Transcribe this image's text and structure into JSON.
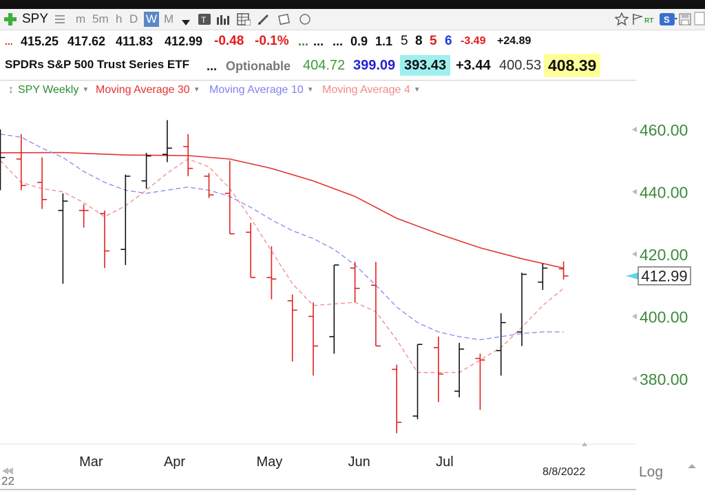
{
  "toolbar": {
    "symbol": "SPY",
    "periods": [
      "m",
      "5m",
      "h",
      "D",
      "W",
      "M"
    ],
    "active_period": "W",
    "icons": [
      "plus-icon",
      "list-icon",
      "dropdown-icon",
      "text-tool-icon",
      "bars-icon",
      "grid-icon",
      "pencil-icon",
      "annotation-icon",
      "circle-icon"
    ],
    "right_icons": [
      "star-icon",
      "flag-icon",
      "rt-icon",
      "s-icon",
      "save-icon",
      "copy-icon"
    ],
    "rt_label": "RT",
    "s_label": "S"
  },
  "quote_row": {
    "dots": "...",
    "open": "415.25",
    "high": "417.62",
    "low": "411.83",
    "close": "412.99",
    "change": "-0.48",
    "change_pct": "-0.1%",
    "dots2": "...",
    "dots3": "...",
    "dots4": "...",
    "val1": "0.9",
    "val2": "1.1",
    "n1": "5",
    "n2": "8",
    "n3": "5",
    "n4": "6",
    "neg": "-3.49",
    "pos": "+24.89",
    "colors": {
      "neg": "#e31b1b",
      "green": "#2e8b2e",
      "blue": "#1e3cd8"
    }
  },
  "info_row": {
    "name": "SPDRs S&P 500 Trust Series ETF",
    "dots": "...",
    "optionable": "Optionable",
    "v1": "404.72",
    "v2": "399.09",
    "v3": "393.43",
    "v4": "+3.44",
    "v5": "400.53",
    "v6": "408.39",
    "colors": {
      "v1": "#3a9a3a",
      "v2": "#2323d0",
      "v3_bg": "#9ef0f0",
      "v6_bg": "#ffff99"
    }
  },
  "legend": {
    "items": [
      {
        "label": "SPY Weekly",
        "color": "#2e8b2e"
      },
      {
        "label": "Moving Average 30",
        "color": "#e63030"
      },
      {
        "label": "Moving Average 10",
        "color": "#8080f0"
      },
      {
        "label": "Moving Average 4",
        "color": "#f08a8a"
      }
    ]
  },
  "footer": {
    "date": "8/8/2022",
    "log_label": "Log",
    "year_label": "22"
  },
  "chart_data": {
    "type": "ohlc",
    "yticks": [
      380,
      400,
      420,
      440,
      460
    ],
    "ytick_labels": [
      "380.00",
      "400.00",
      "420.00",
      "440.00",
      "460.00"
    ],
    "ylim": [
      362,
      468
    ],
    "x_month_labels": [
      {
        "label": "Mar",
        "week": 4.35
      },
      {
        "label": "Apr",
        "week": 8.35
      },
      {
        "label": "May",
        "week": 12.9
      },
      {
        "label": "Jun",
        "week": 17.2
      },
      {
        "label": "Jul",
        "week": 21.3
      }
    ],
    "last_price_label": "412.99",
    "last_price": 412.99,
    "colors": {
      "up": "#111111",
      "down": "#e02020",
      "ma30": "#e63030",
      "ma10": "#8f8ff0",
      "ma4": "#f09090",
      "axis": "#3d8a3d"
    },
    "bars": [
      {
        "w": 0,
        "o": 447.0,
        "h": 460.0,
        "l": 440.5,
        "c": 451.0,
        "dir": "up"
      },
      {
        "w": 1,
        "o": 450.5,
        "h": 458.5,
        "l": 440.5,
        "c": 442.0,
        "dir": "down"
      },
      {
        "w": 2,
        "o": 443.0,
        "h": 451.0,
        "l": 434.5,
        "c": 437.5,
        "dir": "down"
      },
      {
        "w": 3,
        "o": 434.0,
        "h": 439.5,
        "l": 410.5,
        "c": 437.0,
        "dir": "up"
      },
      {
        "w": 4,
        "o": 434.0,
        "h": 436.0,
        "l": 428.5,
        "c": 434.0,
        "dir": "down"
      },
      {
        "w": 5,
        "o": 433.0,
        "h": 434.0,
        "l": 415.5,
        "c": 421.0,
        "dir": "down"
      },
      {
        "w": 6,
        "o": 421.5,
        "h": 445.5,
        "l": 416.5,
        "c": 445.0,
        "dir": "up"
      },
      {
        "w": 7,
        "o": 443.5,
        "h": 452.5,
        "l": 441.0,
        "c": 451.5,
        "dir": "up"
      },
      {
        "w": 8,
        "o": 452.0,
        "h": 463.0,
        "l": 449.5,
        "c": 454.0,
        "dir": "up"
      },
      {
        "w": 9,
        "o": 454.5,
        "h": 458.5,
        "l": 445.0,
        "c": 447.5,
        "dir": "down"
      },
      {
        "w": 10,
        "o": 445.0,
        "h": 446.0,
        "l": 438.0,
        "c": 439.0,
        "dir": "down"
      },
      {
        "w": 11,
        "o": 439.5,
        "h": 450.0,
        "l": 426.5,
        "c": 426.5,
        "dir": "down"
      },
      {
        "w": 12,
        "o": 427.0,
        "h": 430.0,
        "l": 412.5,
        "c": 412.5,
        "dir": "down"
      },
      {
        "w": 13,
        "o": 412.5,
        "h": 422.5,
        "l": 405.5,
        "c": 412.0,
        "dir": "down"
      },
      {
        "w": 14,
        "o": 405.0,
        "h": 407.0,
        "l": 385.5,
        "c": 402.0,
        "dir": "down"
      },
      {
        "w": 15,
        "o": 400.0,
        "h": 404.5,
        "l": 381.0,
        "c": 390.5,
        "dir": "down"
      },
      {
        "w": 16,
        "o": 393.5,
        "h": 416.5,
        "l": 388.0,
        "c": 416.5,
        "dir": "up"
      },
      {
        "w": 17,
        "o": 415.5,
        "h": 417.5,
        "l": 404.5,
        "c": 409.0,
        "dir": "down"
      },
      {
        "w": 18,
        "o": 410.0,
        "h": 417.5,
        "l": 390.5,
        "c": 390.5,
        "dir": "down"
      },
      {
        "w": 19,
        "o": 383.0,
        "h": 384.5,
        "l": 362.5,
        "c": 366.0,
        "dir": "down"
      },
      {
        "w": 20,
        "o": 368.0,
        "h": 391.0,
        "l": 367.0,
        "c": 391.0,
        "dir": "up"
      },
      {
        "w": 21,
        "o": 390.0,
        "h": 393.5,
        "l": 372.5,
        "c": 381.5,
        "dir": "down"
      },
      {
        "w": 22,
        "o": 376.0,
        "h": 391.5,
        "l": 374.0,
        "c": 389.5,
        "dir": "up"
      },
      {
        "w": 23,
        "o": 386.5,
        "h": 388.0,
        "l": 370.0,
        "c": 386.0,
        "dir": "down"
      },
      {
        "w": 24,
        "o": 389.0,
        "h": 401.0,
        "l": 381.0,
        "c": 398.0,
        "dir": "up"
      },
      {
        "w": 25,
        "o": 395.0,
        "h": 414.0,
        "l": 390.5,
        "c": 413.5,
        "dir": "up"
      },
      {
        "w": 26,
        "o": 411.0,
        "h": 417.0,
        "l": 408.5,
        "c": 415.5,
        "dir": "up"
      },
      {
        "w": 27,
        "o": 415.25,
        "h": 417.62,
        "l": 411.83,
        "c": 412.99,
        "dir": "down"
      }
    ],
    "ma30": [
      [
        0,
        452.5
      ],
      [
        3,
        452.6
      ],
      [
        6,
        451.8
      ],
      [
        9,
        451.6
      ],
      [
        11,
        450.5
      ],
      [
        13,
        447.5
      ],
      [
        15,
        443.5
      ],
      [
        17,
        438.5
      ],
      [
        19,
        431.5
      ],
      [
        21,
        426.5
      ],
      [
        23,
        422.0
      ],
      [
        25,
        418.5
      ],
      [
        27,
        415.5
      ]
    ],
    "ma10": [
      [
        0,
        458.5
      ],
      [
        1,
        457.5
      ],
      [
        2,
        454.0
      ],
      [
        3,
        451.0
      ],
      [
        4,
        446.5
      ],
      [
        5,
        443.0
      ],
      [
        6,
        440.5
      ],
      [
        7,
        439.5
      ],
      [
        8,
        440.5
      ],
      [
        9,
        441.5
      ],
      [
        10,
        440.5
      ],
      [
        11,
        438.5
      ],
      [
        12,
        435.0
      ],
      [
        13,
        431.0
      ],
      [
        14,
        427.5
      ],
      [
        15,
        425.0
      ],
      [
        16,
        421.5
      ],
      [
        17,
        416.5
      ],
      [
        18,
        410.0
      ],
      [
        19,
        403.0
      ],
      [
        20,
        398.0
      ],
      [
        21,
        395.0
      ],
      [
        22,
        393.5
      ],
      [
        23,
        392.5
      ],
      [
        24,
        393.5
      ],
      [
        25,
        394.5
      ],
      [
        26,
        395.0
      ],
      [
        27,
        395.0
      ]
    ],
    "ma4": [
      [
        0,
        450.0
      ],
      [
        1,
        443.0
      ],
      [
        2,
        441.0
      ],
      [
        3,
        440.0
      ],
      [
        4,
        436.5
      ],
      [
        5,
        432.0
      ],
      [
        6,
        435.5
      ],
      [
        7,
        440.5
      ],
      [
        8,
        446.0
      ],
      [
        9,
        450.5
      ],
      [
        10,
        448.0
      ],
      [
        11,
        441.0
      ],
      [
        12,
        431.5
      ],
      [
        13,
        421.0
      ],
      [
        14,
        410.5
      ],
      [
        15,
        403.5
      ],
      [
        16,
        404.0
      ],
      [
        17,
        404.5
      ],
      [
        18,
        401.5
      ],
      [
        19,
        392.5
      ],
      [
        20,
        382.0
      ],
      [
        21,
        382.0
      ],
      [
        22,
        382.0
      ],
      [
        23,
        386.0
      ],
      [
        24,
        390.0
      ],
      [
        25,
        396.5
      ],
      [
        26,
        403.5
      ],
      [
        27,
        409.0
      ]
    ]
  }
}
